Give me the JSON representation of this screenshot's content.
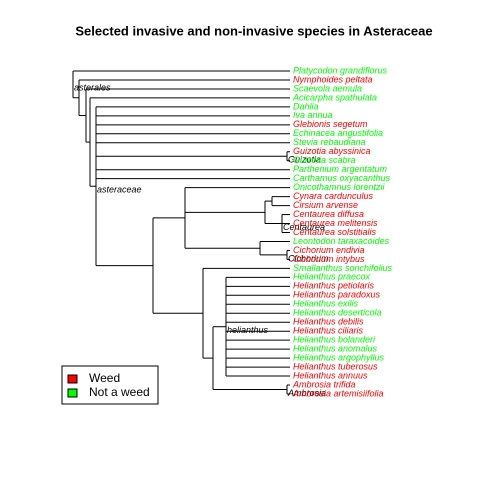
{
  "title": "Selected invasive and non-invasive species in Asteraceae",
  "tips": [
    {
      "name": "Platycodon grandiflorus",
      "color": "#00ff00"
    },
    {
      "name": "Nymphoides peltata",
      "color": "#ff0000"
    },
    {
      "name": "Scaevola aemula",
      "color": "#00ff00"
    },
    {
      "name": "Acicarpha spathulata",
      "color": "#00ff00"
    },
    {
      "name": "Dahlia",
      "color": "#00ff00"
    },
    {
      "name": "Iva annua",
      "color": "#00ff00"
    },
    {
      "name": "Glebionis segetum",
      "color": "#ff0000"
    },
    {
      "name": "Echinacea angustifolia",
      "color": "#00ff00"
    },
    {
      "name": "Stevia rebaudiana",
      "color": "#00ff00"
    },
    {
      "name": "Guizotia abyssinica",
      "color": "#ff0000"
    },
    {
      "name": "Guizotia scabra",
      "color": "#00ff00"
    },
    {
      "name": "Parthenium argentatum",
      "color": "#00ff00"
    },
    {
      "name": "Carthamus oxyacanthus",
      "color": "#00ff00"
    },
    {
      "name": "Onicothamnus lorentzii",
      "color": "#00ff00"
    },
    {
      "name": "Cynara cardunculus",
      "color": "#ff0000"
    },
    {
      "name": "Cirsium arvense",
      "color": "#ff0000"
    },
    {
      "name": "Centaurea diffusa",
      "color": "#ff0000"
    },
    {
      "name": "Centaurea melitensis",
      "color": "#ff0000"
    },
    {
      "name": "Centaurea solstitialis",
      "color": "#ff0000"
    },
    {
      "name": "Leontodon taraxacoides",
      "color": "#00ff00"
    },
    {
      "name": "Cichorium endivia",
      "color": "#ff0000"
    },
    {
      "name": "Cichorium intybus",
      "color": "#ff0000"
    },
    {
      "name": "Smallanthus sonchifolius",
      "color": "#00ff00"
    },
    {
      "name": "Helianthus praecox",
      "color": "#00ff00"
    },
    {
      "name": "Helianthus petiolaris",
      "color": "#ff0000"
    },
    {
      "name": "Helianthus paradoxus",
      "color": "#ff0000"
    },
    {
      "name": "Helianthus exilis",
      "color": "#00ff00"
    },
    {
      "name": "Helianthus deserticola",
      "color": "#00ff00"
    },
    {
      "name": "Helianthus debilis",
      "color": "#ff0000"
    },
    {
      "name": "Helianthus ciliaris",
      "color": "#ff0000"
    },
    {
      "name": "Helianthus bolanderi",
      "color": "#00ff00"
    },
    {
      "name": "Helianthus anomalus",
      "color": "#00ff00"
    },
    {
      "name": "Helianthus argophyllus",
      "color": "#00ff00"
    },
    {
      "name": "Helianthus tuberosus",
      "color": "#ff0000"
    },
    {
      "name": "Helianthus annuus",
      "color": "#ff0000"
    },
    {
      "name": "Ambrosia trifida",
      "color": "#ff0000"
    },
    {
      "name": "Ambrosia artemisiifolia",
      "color": "#ff0000"
    }
  ],
  "node_labels": [
    "asterales",
    "asteraceae",
    "Guizotia",
    "Centaurea",
    "Cichorium",
    "helianthus",
    "Ambrosia"
  ],
  "legend": [
    {
      "name": "Weed",
      "color": "#ff0000"
    },
    {
      "name": "Not a weed",
      "color": "#00ff00"
    }
  ]
}
